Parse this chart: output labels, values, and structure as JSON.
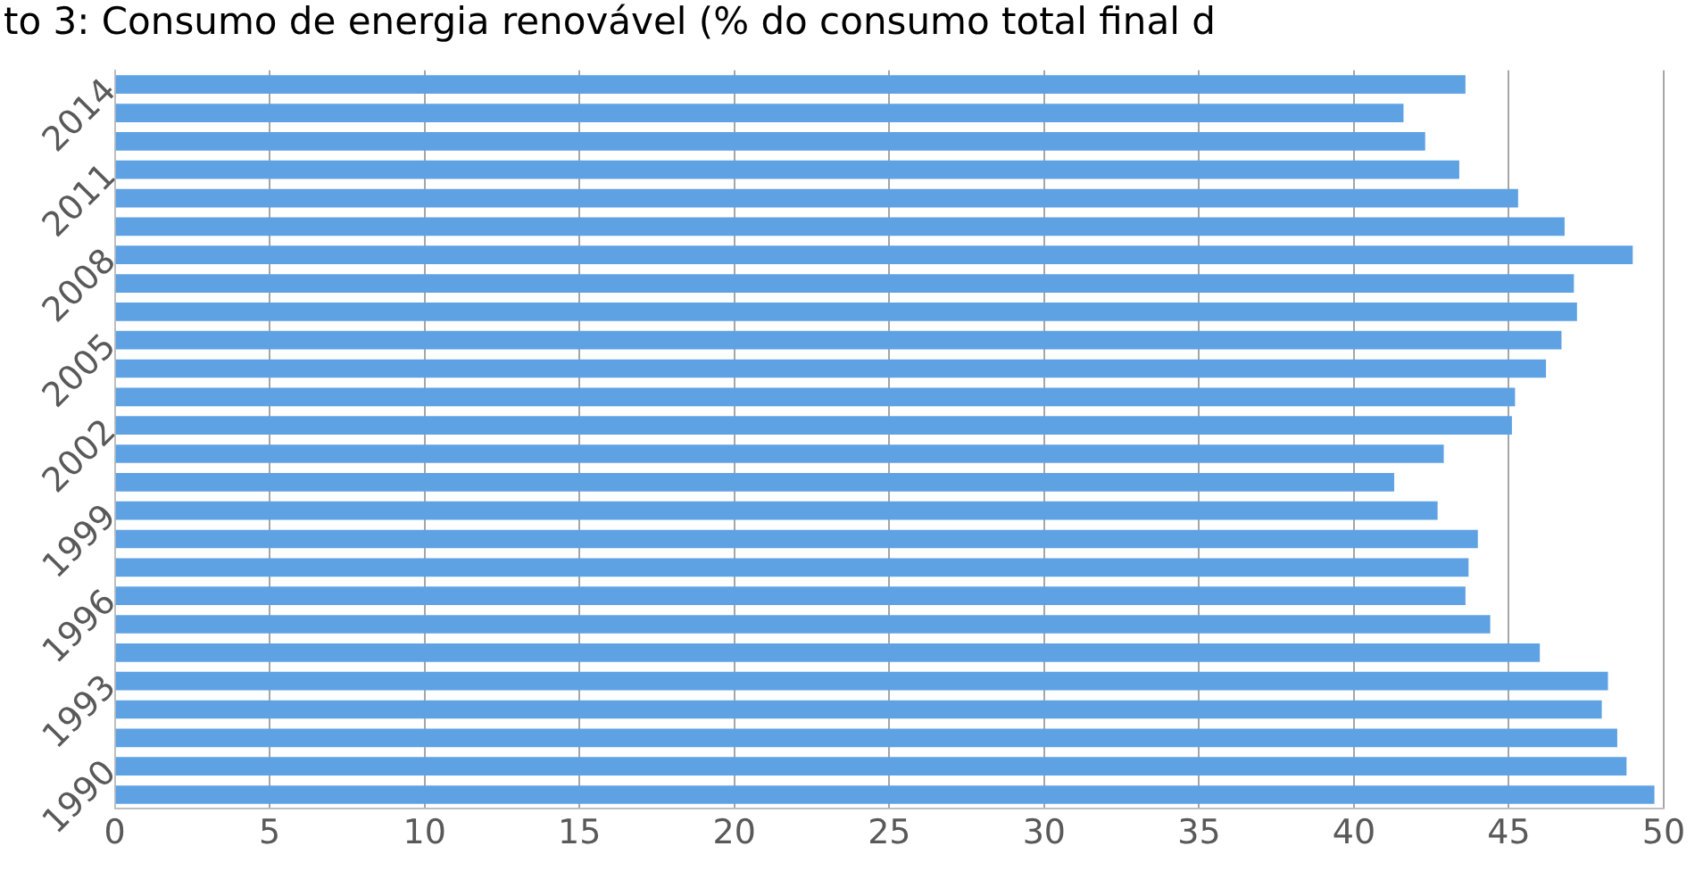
{
  "chart_data": {
    "type": "bar",
    "orientation": "horizontal",
    "title": "to 3: Consumo de energia renovável (% do consumo total final d",
    "categories": [
      null,
      "2014",
      null,
      null,
      "2011",
      null,
      null,
      "2008",
      null,
      null,
      "2005",
      null,
      null,
      "2002",
      null,
      null,
      "1999",
      null,
      null,
      "1996",
      null,
      null,
      "1993",
      null,
      null,
      "1990"
    ],
    "values": [
      43.6,
      41.6,
      42.3,
      43.4,
      45.3,
      46.8,
      49.0,
      47.1,
      47.2,
      46.7,
      46.2,
      45.2,
      45.1,
      42.9,
      41.3,
      42.7,
      44.0,
      43.7,
      43.6,
      44.4,
      46.0,
      48.2,
      48.0,
      48.5,
      48.8,
      49.7
    ],
    "color": "#5fa2e4",
    "xlim": [
      0,
      50
    ],
    "xticks": [
      0,
      5,
      10,
      15,
      20,
      25,
      30,
      35,
      40,
      45,
      50
    ],
    "grid": "x",
    "legend": false
  }
}
